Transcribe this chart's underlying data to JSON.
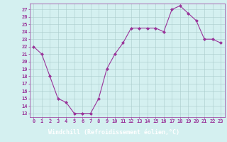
{
  "x": [
    0,
    1,
    2,
    3,
    4,
    5,
    6,
    7,
    8,
    9,
    10,
    11,
    12,
    13,
    14,
    15,
    16,
    17,
    18,
    19,
    20,
    21,
    22,
    23
  ],
  "y": [
    22,
    21,
    18,
    15,
    14.5,
    13,
    13,
    13,
    15,
    19,
    21,
    22.5,
    24.5,
    24.5,
    24.5,
    24.5,
    24,
    27,
    27.5,
    26.5,
    25.5,
    23,
    23,
    22.5
  ],
  "line_color": "#993399",
  "marker": "D",
  "marker_size": 2,
  "bg_color": "#d4f0f0",
  "grid_color": "#aacccc",
  "xlabel": "Windchill (Refroidissement éolien,°C)",
  "xlabel_color": "#ffffff",
  "xlabel_bg": "#993399",
  "yticks": [
    13,
    14,
    15,
    16,
    17,
    18,
    19,
    20,
    21,
    22,
    23,
    24,
    25,
    26,
    27
  ],
  "xlim": [
    -0.5,
    23.5
  ],
  "ylim": [
    12.5,
    27.8
  ],
  "xticks": [
    0,
    1,
    2,
    3,
    4,
    5,
    6,
    7,
    8,
    9,
    10,
    11,
    12,
    13,
    14,
    15,
    16,
    17,
    18,
    19,
    20,
    21,
    22,
    23
  ],
  "tick_color": "#993399",
  "tick_fontsize": 5,
  "label_fontsize": 6,
  "linewidth": 0.8
}
